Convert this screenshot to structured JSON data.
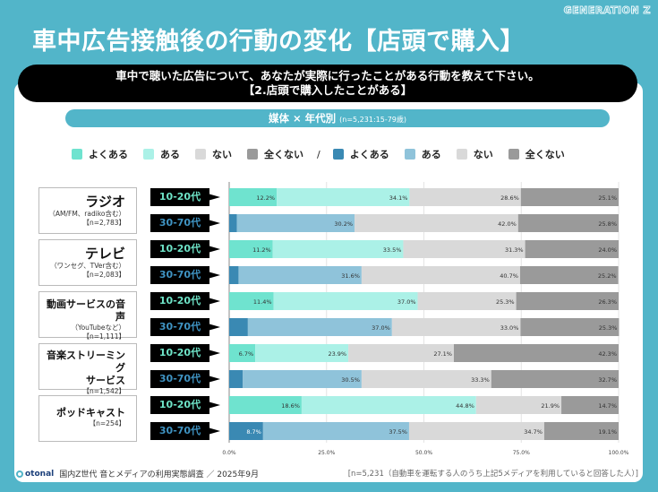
{
  "badge": "GENERATION Z",
  "title": "車中広告接触後の行動の変化【店頭で購入】",
  "question": {
    "line1": "車中で聴いた広告について、あなたが実際に行ったことがある行動を教えて下さい。",
    "line2": "【2.店頭で購入したことがある】"
  },
  "subtitle": {
    "main": "媒体 × 年代別",
    "note": "(n=5,231:15-79歳)"
  },
  "legend": {
    "young": [
      {
        "label": "よくある",
        "color": "#6fe3cf"
      },
      {
        "label": "ある",
        "color": "#abf1e7"
      },
      {
        "label": "ない",
        "color": "#d9d9d9"
      },
      {
        "label": "全くない",
        "color": "#9a9a9a"
      }
    ],
    "separator": "/",
    "old": [
      {
        "label": "よくある",
        "color": "#3a89b3"
      },
      {
        "label": "ある",
        "color": "#8fc3da"
      },
      {
        "label": "ない",
        "color": "#d9d9d9"
      },
      {
        "label": "全くない",
        "color": "#9a9a9a"
      }
    ]
  },
  "media": [
    {
      "name": "ラジオ",
      "sub": "（AM/FM、radiko含む）",
      "n": "【n=2,783】"
    },
    {
      "name": "テレビ",
      "sub": "（ワンセグ、TVer含む）",
      "n": "【n=2,083】"
    },
    {
      "name": "動画サービスの音声",
      "sub": "（YouTubeなど）",
      "n": "【n=1,111】"
    },
    {
      "name": "音楽ストリーミング",
      "name2": "サービス",
      "n": "【n=1,542】"
    },
    {
      "name": "ポッドキャスト",
      "n": "【n=254】"
    }
  ],
  "age_labels": {
    "young": "10-20代",
    "old": "30-70代"
  },
  "chart_data": {
    "type": "bar",
    "orientation": "horizontal-stacked-100",
    "categories": [
      "ラジオ 10-20代",
      "ラジオ 30-70代",
      "テレビ 10-20代",
      "テレビ 30-70代",
      "動画サービスの音声 10-20代",
      "動画サービスの音声 30-70代",
      "音楽ストリーミングサービス 10-20代",
      "音楽ストリーミングサービス 30-70代",
      "ポッドキャスト 10-20代",
      "ポッドキャスト 30-70代"
    ],
    "series": [
      {
        "name": "よくある",
        "values": [
          12.2,
          2.0,
          11.2,
          2.4,
          11.4,
          4.8,
          6.7,
          3.5,
          18.6,
          8.7
        ]
      },
      {
        "name": "ある",
        "values": [
          34.1,
          30.2,
          33.5,
          31.6,
          37.0,
          37.0,
          23.9,
          30.5,
          44.8,
          37.5
        ]
      },
      {
        "name": "ない",
        "values": [
          28.6,
          42.0,
          31.3,
          40.7,
          25.3,
          33.0,
          27.1,
          33.3,
          21.9,
          34.7
        ]
      },
      {
        "name": "全くない",
        "values": [
          25.1,
          25.8,
          24.0,
          25.2,
          26.3,
          25.3,
          42.3,
          32.7,
          14.7,
          19.1
        ]
      }
    ],
    "xlim": [
      0,
      100
    ],
    "xticks": [
      "0.0%",
      "25.0%",
      "50.0%",
      "75.0%",
      "100.0%"
    ],
    "grid": true,
    "legend": "top"
  },
  "footer": {
    "logo": "otonal",
    "source": "国内Z世代 音とメディアの利用実態調査 ／ 2025年9月",
    "note": "[n=5,231（自動車を運転する人のうち上記5メディアを利用していると回答した人）]"
  }
}
